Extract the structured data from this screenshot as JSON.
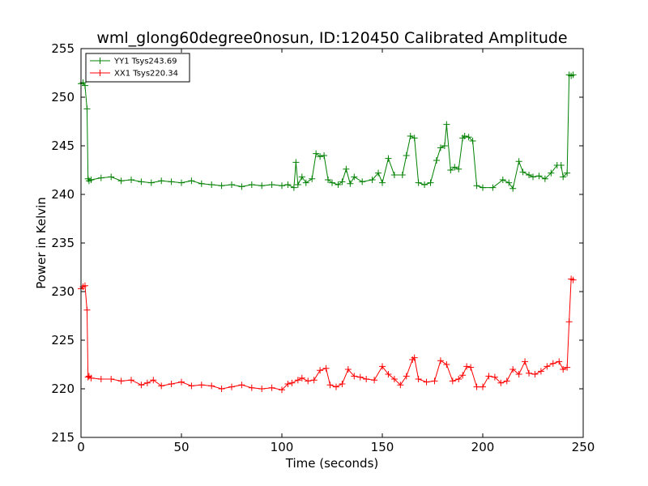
{
  "chart_data": {
    "type": "line",
    "title": "wml_glong60degree0nosun, ID:120450 Calibrated Amplitude",
    "xlabel": "Time (seconds)",
    "ylabel": "Power in Kelvin",
    "xlim": [
      0,
      250
    ],
    "ylim": [
      215,
      255
    ],
    "xticks": [
      0,
      50,
      100,
      150,
      200,
      250
    ],
    "yticks": [
      215,
      220,
      225,
      230,
      235,
      240,
      245,
      250,
      255
    ],
    "grid": false,
    "legend_position": "top-left",
    "marker": "+",
    "series": [
      {
        "name": "YY1 Tsys243.69",
        "color": "#008000",
        "x": [
          0,
          1,
          2,
          3,
          3.5,
          4,
          5,
          10,
          15,
          20,
          25,
          30,
          35,
          40,
          45,
          50,
          55,
          60,
          65,
          70,
          75,
          80,
          85,
          90,
          95,
          100,
          103,
          106,
          107,
          108,
          110,
          112,
          115,
          117,
          119,
          121,
          123,
          125,
          128,
          130,
          132,
          134,
          136,
          140,
          145,
          148,
          150,
          153,
          156,
          160,
          162,
          164,
          166,
          168,
          171,
          174,
          177,
          179,
          181,
          182,
          184,
          186,
          188,
          190,
          191,
          193,
          195,
          197,
          200,
          205,
          210,
          213,
          215,
          218,
          220,
          223,
          225,
          228,
          231,
          234,
          237,
          239,
          240,
          242,
          243,
          244,
          245
        ],
        "values": [
          251.4,
          251.5,
          251.2,
          248.8,
          241.6,
          241.4,
          241.5,
          241.7,
          241.8,
          241.4,
          241.5,
          241.3,
          241.2,
          241.4,
          241.3,
          241.2,
          241.4,
          241.1,
          241.0,
          240.9,
          241.0,
          240.8,
          241.0,
          240.9,
          241.0,
          240.9,
          241.0,
          240.7,
          243.3,
          241.0,
          241.8,
          241.2,
          241.6,
          244.2,
          243.9,
          244.0,
          241.5,
          241.2,
          241.0,
          241.3,
          242.6,
          241.1,
          241.8,
          241.3,
          241.5,
          242.2,
          241.2,
          243.7,
          242.0,
          242.0,
          244.0,
          246.0,
          245.8,
          241.2,
          241.0,
          241.2,
          243.5,
          244.8,
          245.0,
          247.2,
          242.5,
          242.8,
          242.6,
          245.8,
          246.0,
          245.9,
          245.5,
          240.9,
          240.7,
          240.7,
          241.5,
          241.2,
          240.6,
          243.4,
          242.3,
          242.0,
          241.8,
          241.9,
          241.6,
          242.2,
          243.0,
          243.0,
          241.8,
          242.2,
          252.3,
          252.2,
          252.3
        ]
      },
      {
        "name": "XX1 Tsys220.34",
        "color": "#ff0000",
        "x": [
          0,
          1,
          2,
          3,
          3.5,
          4,
          5,
          10,
          15,
          20,
          25,
          30,
          33,
          36,
          40,
          45,
          50,
          55,
          60,
          65,
          70,
          75,
          80,
          85,
          90,
          95,
          100,
          103,
          105,
          108,
          110,
          113,
          116,
          119,
          122,
          124,
          127,
          130,
          133,
          136,
          139,
          142,
          146,
          150,
          153,
          156,
          159,
          162,
          165,
          166,
          168,
          172,
          176,
          179,
          182,
          185,
          188,
          190,
          192,
          194,
          197,
          200,
          203,
          206,
          209,
          212,
          215,
          218,
          221,
          223,
          226,
          229,
          232,
          235,
          238,
          240,
          242,
          243,
          244,
          245
        ],
        "values": [
          230.3,
          230.5,
          230.6,
          228.1,
          221.2,
          221.3,
          221.1,
          221.0,
          221.0,
          220.8,
          220.9,
          220.4,
          220.6,
          220.9,
          220.3,
          220.5,
          220.7,
          220.3,
          220.4,
          220.3,
          220.0,
          220.2,
          220.4,
          220.1,
          220.0,
          220.1,
          219.9,
          220.5,
          220.6,
          220.9,
          221.1,
          220.8,
          220.9,
          221.9,
          222.1,
          220.4,
          220.2,
          220.5,
          222.0,
          221.3,
          221.2,
          221.0,
          220.9,
          222.3,
          221.5,
          221.0,
          220.4,
          221.3,
          223.0,
          223.2,
          221.0,
          220.7,
          220.8,
          222.9,
          222.5,
          220.8,
          221.0,
          221.4,
          222.3,
          222.2,
          220.2,
          220.2,
          221.3,
          221.2,
          220.6,
          220.8,
          222.0,
          221.5,
          222.8,
          221.6,
          221.5,
          221.8,
          222.3,
          222.6,
          222.8,
          222.0,
          222.2,
          226.9,
          231.3,
          231.2
        ]
      }
    ]
  }
}
